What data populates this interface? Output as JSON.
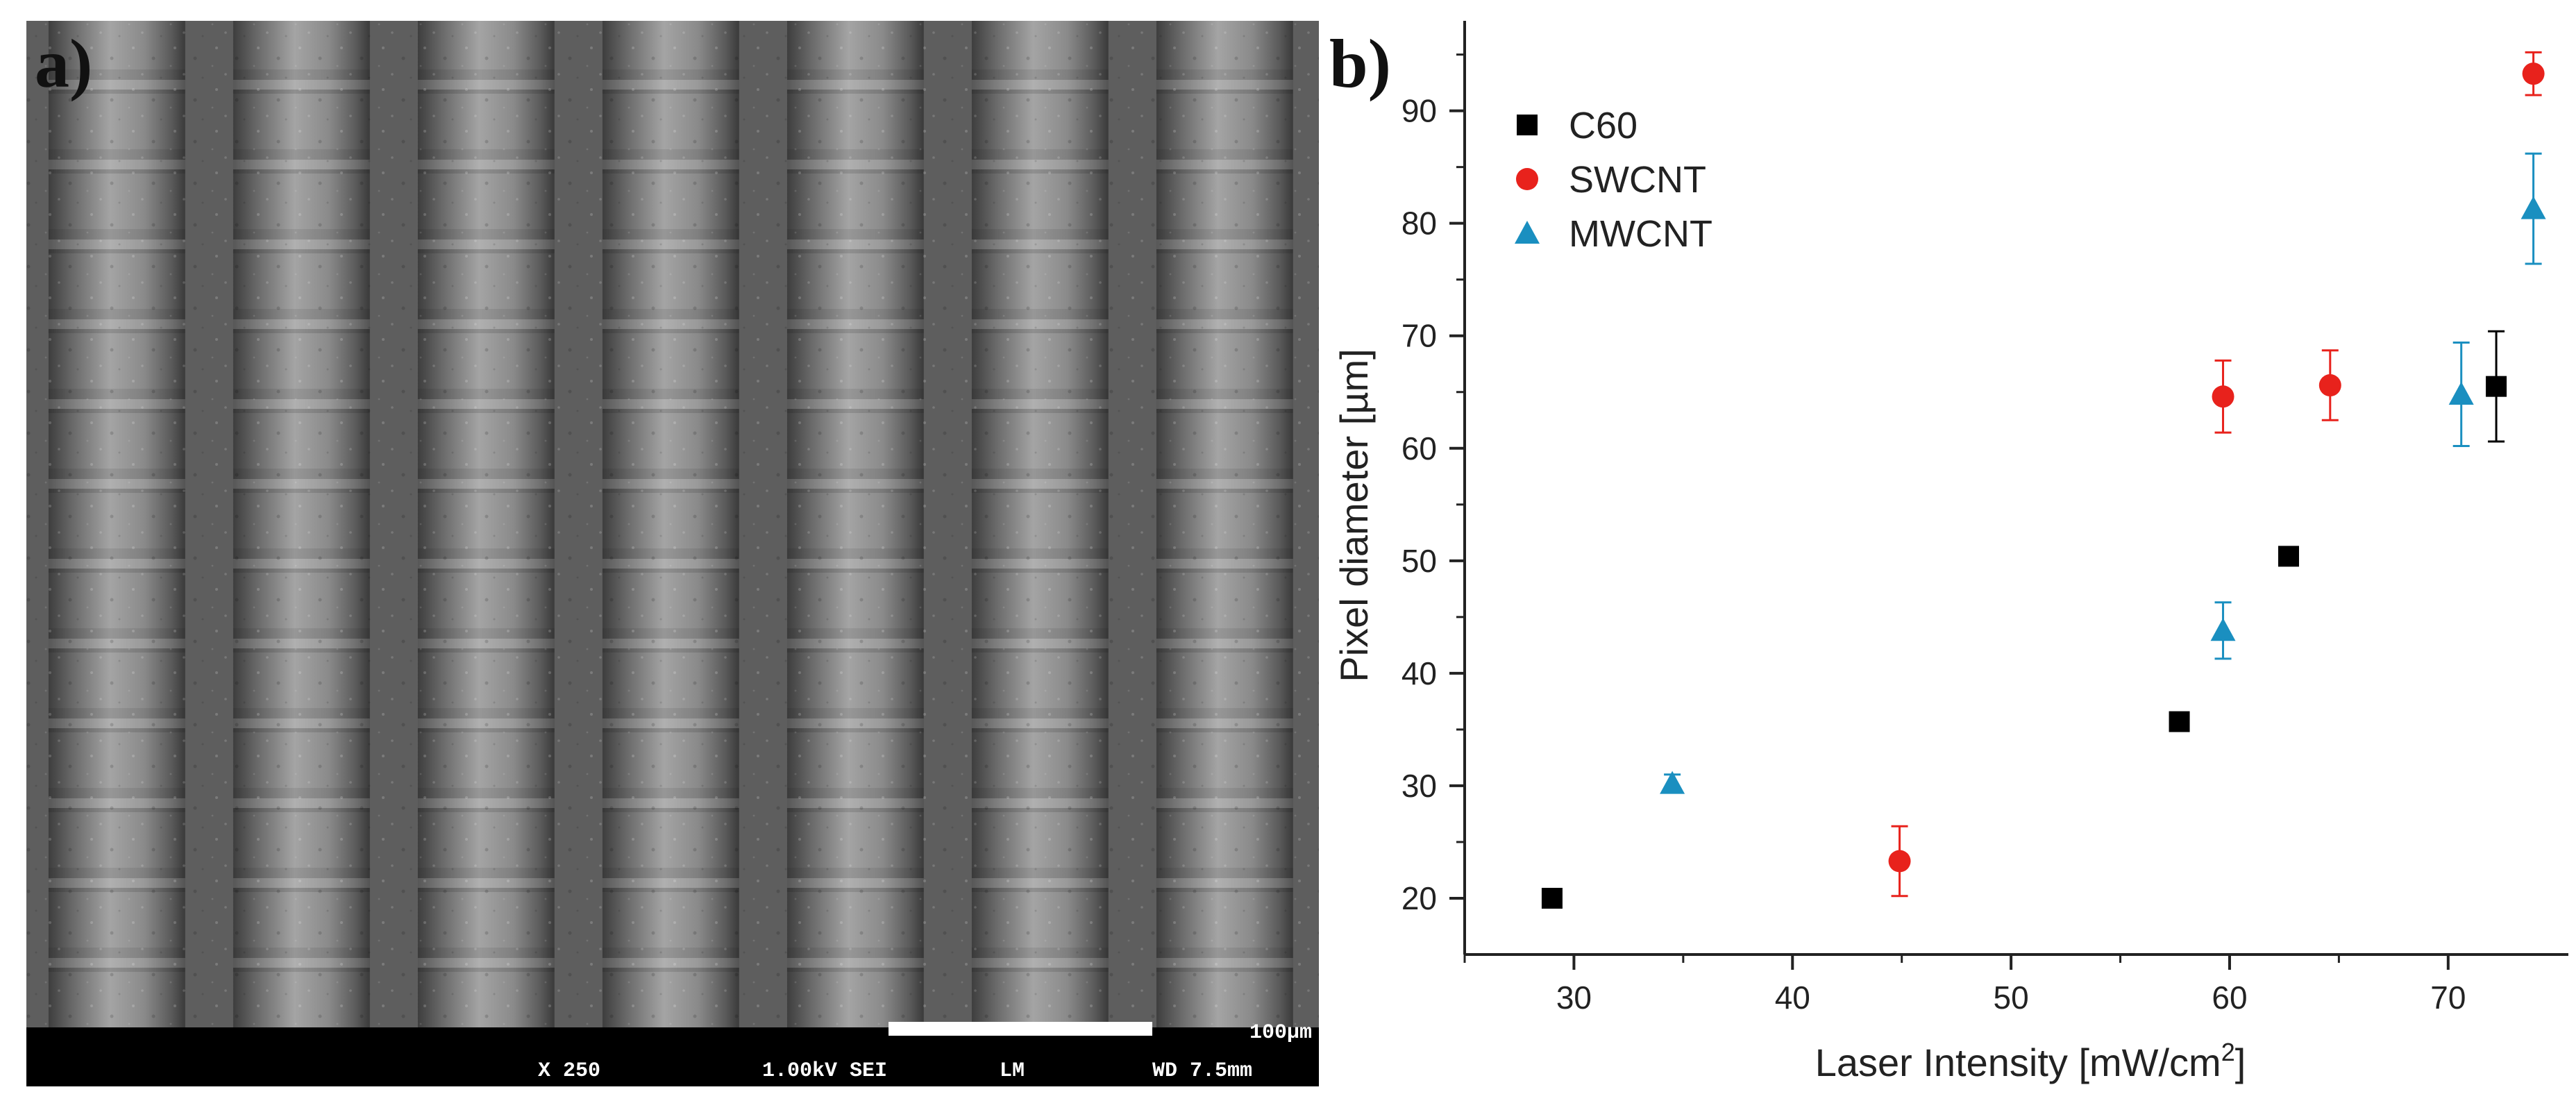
{
  "panels": {
    "a_label": "a)",
    "b_label": "b)"
  },
  "sem": {
    "magnification": "X 250",
    "voltage_mode": "1.00kV SEI",
    "lens_mode": "LM",
    "working_distance": "WD 7.5mm",
    "scale_bar_label": "100µm",
    "column_count": 7
  },
  "chart_data": {
    "type": "scatter",
    "xlabel": "Laser Intensity [mW/cm",
    "xlabel_superscript": "2",
    "xlabel_suffix": "]",
    "ylabel": "Pixel diameter [µm]",
    "xlim": [
      25,
      75.5
    ],
    "ylim": [
      15,
      98
    ],
    "xticks": [
      30,
      40,
      50,
      60,
      70
    ],
    "yticks": [
      20,
      30,
      40,
      50,
      60,
      70,
      80,
      90
    ],
    "grid": false,
    "legend_position": "top-left",
    "series": [
      {
        "name": "C60",
        "marker": "square",
        "color": "#000000",
        "x": [
          29.0,
          57.7,
          62.7,
          72.2
        ],
        "y": [
          20.0,
          35.7,
          50.4,
          65.5
        ],
        "err": [
          0.8,
          0.8,
          0.8,
          4.9
        ]
      },
      {
        "name": "SWCNT",
        "marker": "circle",
        "color": "#e8221c",
        "x": [
          44.9,
          59.7,
          64.6,
          73.9
        ],
        "y": [
          23.3,
          64.6,
          65.6,
          93.3
        ],
        "err": [
          3.1,
          3.2,
          3.1,
          1.9
        ]
      },
      {
        "name": "MWCNT",
        "marker": "triangle",
        "color": "#1a8fc0",
        "x": [
          34.5,
          59.7,
          70.6,
          73.9
        ],
        "y": [
          30.2,
          43.8,
          64.8,
          81.3
        ],
        "err": [
          0.8,
          2.5,
          4.6,
          4.9
        ]
      }
    ]
  }
}
